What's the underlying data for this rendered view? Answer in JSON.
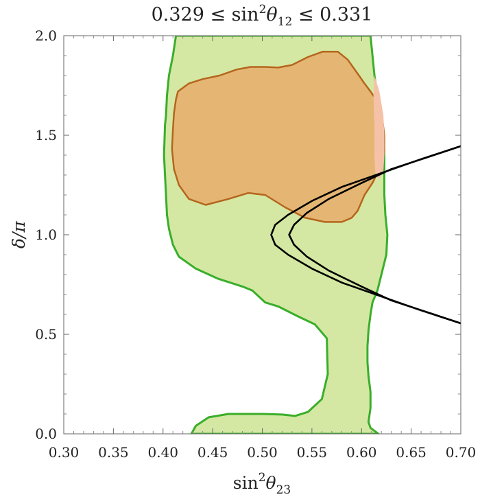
{
  "chart_data": {
    "type": "contour",
    "title": {
      "pre": "0.329 ≤ sin",
      "sup": "2",
      "greek": "θ",
      "sub": "12",
      "post": " ≤ 0.331"
    },
    "xlabel": {
      "pre": "sin",
      "sup": "2",
      "greek": "θ",
      "sub": "23"
    },
    "ylabel": "δ/π",
    "xlim": [
      0.3,
      0.7
    ],
    "ylim": [
      0.0,
      2.0
    ],
    "x_ticks": [
      "0.30",
      "0.35",
      "0.40",
      "0.45",
      "0.50",
      "0.55",
      "0.60",
      "0.65",
      "0.70"
    ],
    "y_ticks": [
      "0.0",
      "0.5",
      "1.0",
      "1.5",
      "2.0"
    ],
    "colors": {
      "region_outer_fill": "#d4e8a3",
      "region_outer_line": "#3aae2a",
      "region_inner_fill": "#e5b673",
      "region_inner_line": "#b5651d",
      "region_extra_fill": "#f5c2a8",
      "curve_line": "#000000"
    },
    "regions": [
      {
        "id": "outer",
        "points": [
          [
            0.4286,
            0.0
          ],
          [
            0.433,
            0.04
          ],
          [
            0.446,
            0.083
          ],
          [
            0.466,
            0.1
          ],
          [
            0.5,
            0.1
          ],
          [
            0.52,
            0.097
          ],
          [
            0.533,
            0.09
          ],
          [
            0.546,
            0.11
          ],
          [
            0.56,
            0.175
          ],
          [
            0.566,
            0.3
          ],
          [
            0.565,
            0.48
          ],
          [
            0.553,
            0.55
          ],
          [
            0.536,
            0.59
          ],
          [
            0.516,
            0.64
          ],
          [
            0.503,
            0.66
          ],
          [
            0.49,
            0.72
          ],
          [
            0.48,
            0.74
          ],
          [
            0.455,
            0.78
          ],
          [
            0.433,
            0.83
          ],
          [
            0.416,
            0.89
          ],
          [
            0.41,
            0.95
          ],
          [
            0.406,
            1.03
          ],
          [
            0.404,
            1.1
          ],
          [
            0.403,
            1.2
          ],
          [
            0.402,
            1.3
          ],
          [
            0.401,
            1.4
          ],
          [
            0.402,
            1.55
          ],
          [
            0.403,
            1.6
          ],
          [
            0.404,
            1.7
          ],
          [
            0.406,
            1.8
          ],
          [
            0.41,
            1.9
          ],
          [
            0.413,
            2.0
          ],
          [
            0.609,
            2.0
          ],
          [
            0.611,
            1.9
          ],
          [
            0.613,
            1.8
          ],
          [
            0.616,
            1.7
          ],
          [
            0.619,
            1.6
          ],
          [
            0.622,
            1.5
          ],
          [
            0.623,
            1.4
          ],
          [
            0.623,
            1.3
          ],
          [
            0.623,
            1.2
          ],
          [
            0.624,
            1.1
          ],
          [
            0.626,
            1.0
          ],
          [
            0.625,
            0.9
          ],
          [
            0.62,
            0.8
          ],
          [
            0.616,
            0.72
          ],
          [
            0.611,
            0.66
          ],
          [
            0.609,
            0.6
          ],
          [
            0.607,
            0.52
          ],
          [
            0.606,
            0.44
          ],
          [
            0.606,
            0.36
          ],
          [
            0.607,
            0.29
          ],
          [
            0.609,
            0.21
          ],
          [
            0.609,
            0.13
          ],
          [
            0.607,
            0.06
          ],
          [
            0.609,
            0.03
          ],
          [
            0.617,
            0.0
          ]
        ]
      },
      {
        "id": "inner",
        "points": [
          [
            0.415,
            1.72
          ],
          [
            0.426,
            1.76
          ],
          [
            0.44,
            1.782
          ],
          [
            0.457,
            1.8
          ],
          [
            0.474,
            1.83
          ],
          [
            0.488,
            1.843
          ],
          [
            0.503,
            1.843
          ],
          [
            0.516,
            1.84
          ],
          [
            0.53,
            1.853
          ],
          [
            0.546,
            1.893
          ],
          [
            0.561,
            1.92
          ],
          [
            0.576,
            1.92
          ],
          [
            0.586,
            1.88
          ],
          [
            0.596,
            1.81
          ],
          [
            0.603,
            1.76
          ],
          [
            0.609,
            1.72
          ],
          [
            0.616,
            1.67
          ],
          [
            0.62,
            1.62
          ],
          [
            0.623,
            1.5
          ],
          [
            0.623,
            1.42
          ],
          [
            0.621,
            1.36
          ],
          [
            0.616,
            1.31
          ],
          [
            0.611,
            1.26
          ],
          [
            0.603,
            1.2
          ],
          [
            0.596,
            1.12
          ],
          [
            0.59,
            1.085
          ],
          [
            0.58,
            1.064
          ],
          [
            0.563,
            1.064
          ],
          [
            0.543,
            1.086
          ],
          [
            0.523,
            1.138
          ],
          [
            0.503,
            1.2
          ],
          [
            0.486,
            1.21
          ],
          [
            0.466,
            1.18
          ],
          [
            0.443,
            1.15
          ],
          [
            0.426,
            1.18
          ],
          [
            0.416,
            1.25
          ],
          [
            0.411,
            1.33
          ],
          [
            0.409,
            1.43
          ],
          [
            0.41,
            1.53
          ],
          [
            0.411,
            1.61
          ],
          [
            0.413,
            1.68
          ]
        ]
      },
      {
        "id": "extra",
        "points": [
          [
            0.613,
            1.8
          ],
          [
            0.618,
            1.72
          ],
          [
            0.622,
            1.6
          ],
          [
            0.623,
            1.5
          ],
          [
            0.623,
            1.4
          ],
          [
            0.622,
            1.32
          ],
          [
            0.618,
            1.28
          ],
          [
            0.614,
            1.3
          ],
          [
            0.613,
            1.4
          ],
          [
            0.613,
            1.55
          ],
          [
            0.612,
            1.7
          ]
        ]
      }
    ],
    "curves": [
      {
        "id": "curve-a",
        "points": [
          [
            0.7,
            0.555
          ],
          [
            0.66,
            0.62
          ],
          [
            0.62,
            0.69
          ],
          [
            0.58,
            0.76
          ],
          [
            0.55,
            0.83
          ],
          [
            0.526,
            0.9
          ],
          [
            0.513,
            0.95
          ],
          [
            0.509,
            1.0
          ],
          [
            0.513,
            1.05
          ],
          [
            0.526,
            1.1
          ],
          [
            0.55,
            1.17
          ],
          [
            0.58,
            1.24
          ],
          [
            0.62,
            1.31
          ],
          [
            0.66,
            1.38
          ],
          [
            0.7,
            1.445
          ]
        ]
      },
      {
        "id": "curve-b",
        "points": [
          [
            0.7,
            0.555
          ],
          [
            0.67,
            0.605
          ],
          [
            0.63,
            0.67
          ],
          [
            0.6,
            0.74
          ],
          [
            0.567,
            0.82
          ],
          [
            0.545,
            0.89
          ],
          [
            0.532,
            0.95
          ],
          [
            0.527,
            1.0
          ],
          [
            0.532,
            1.05
          ],
          [
            0.545,
            1.11
          ],
          [
            0.567,
            1.18
          ],
          [
            0.6,
            1.26
          ],
          [
            0.63,
            1.33
          ],
          [
            0.67,
            1.395
          ],
          [
            0.7,
            1.445
          ]
        ]
      }
    ]
  }
}
